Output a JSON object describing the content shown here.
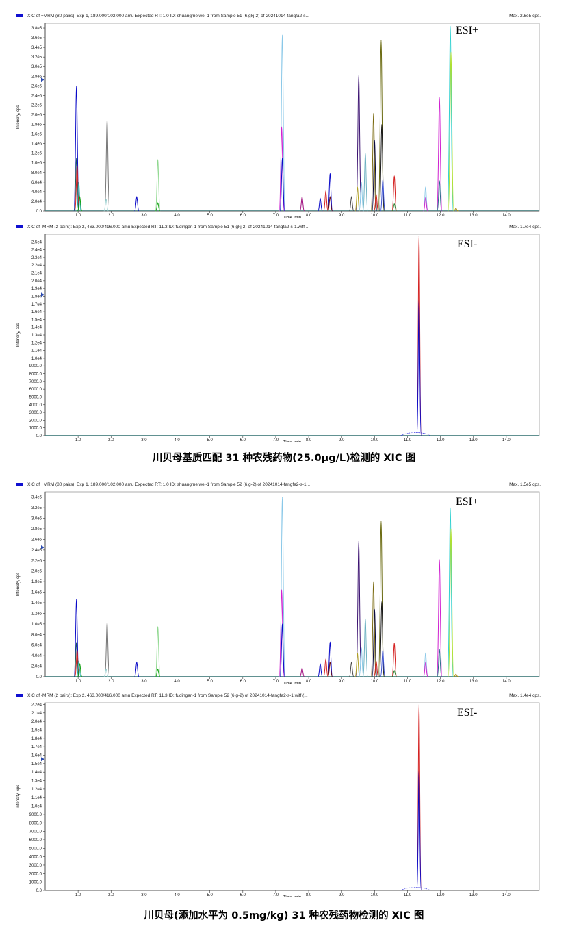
{
  "chart_data": [
    {
      "type": "line",
      "header": "XIC of +MRM (80 pairs): Exp 1, 189.000/102.000 amu Expected RT: 1.0 ID: shuangmeiwei-1 from Sample 51 (6.gkj-2) of 20241014-fangfa2-s...",
      "max_label": "Max. 2.6e5 cps.",
      "annotation": "ESI+",
      "ylabel": "Intensity, cps",
      "xlabel": "Time, min",
      "xlim": [
        0,
        15.0
      ],
      "ylim": [
        0,
        390000
      ],
      "x_ticks": [
        1.0,
        2.0,
        3.0,
        4.0,
        5.0,
        6.0,
        7.0,
        8.0,
        9.0,
        10.0,
        11.0,
        12.0,
        13.0,
        14.0
      ],
      "y_ticks": [
        0,
        20000,
        40000,
        60000,
        80000,
        100000,
        120000,
        140000,
        160000,
        180000,
        200000,
        220000,
        240000,
        260000,
        280000,
        300000,
        320000,
        340000,
        360000,
        380000
      ],
      "y_tick_labels": [
        "0.0",
        "2.0e4",
        "4.0e4",
        "6.0e4",
        "8.0e4",
        "1.0e5",
        "1.2e5",
        "1.4e5",
        "1.6e5",
        "1.8e5",
        "2.0e5",
        "2.2e5",
        "2.4e5",
        "2.6e5",
        "2.8e5",
        "3.0e5",
        "3.2e5",
        "3.4e5",
        "3.6e5",
        "3.8e5"
      ],
      "peaks": [
        {
          "x": 0.95,
          "y": 260000,
          "color": "#0a0ac8"
        },
        {
          "x": 0.95,
          "y": 110000,
          "color": "#1a5a5a"
        },
        {
          "x": 0.97,
          "y": 95000,
          "color": "#d42020"
        },
        {
          "x": 1.02,
          "y": 60000,
          "color": "#30b0b0"
        },
        {
          "x": 1.05,
          "y": 30000,
          "color": "#10a010"
        },
        {
          "x": 1.88,
          "y": 190000,
          "color": "#777777"
        },
        {
          "x": 1.85,
          "y": 25000,
          "color": "#9ad0d0"
        },
        {
          "x": 2.78,
          "y": 30000,
          "color": "#0a0ac8"
        },
        {
          "x": 3.42,
          "y": 107000,
          "color": "#90d890"
        },
        {
          "x": 3.42,
          "y": 17000,
          "color": "#10a010"
        },
        {
          "x": 7.2,
          "y": 366000,
          "color": "#8ac8e8"
        },
        {
          "x": 7.18,
          "y": 175000,
          "color": "#d020d0"
        },
        {
          "x": 7.2,
          "y": 110000,
          "color": "#0a0ac8"
        },
        {
          "x": 7.8,
          "y": 30000,
          "color": "#a01080"
        },
        {
          "x": 8.35,
          "y": 27000,
          "color": "#0a0ac8"
        },
        {
          "x": 8.52,
          "y": 42000,
          "color": "#d42020"
        },
        {
          "x": 8.65,
          "y": 78000,
          "color": "#0a0ac8"
        },
        {
          "x": 8.65,
          "y": 30000,
          "color": "#6a1010"
        },
        {
          "x": 9.3,
          "y": 30000,
          "color": "#4a4a4a"
        },
        {
          "x": 9.52,
          "y": 282000,
          "color": "#3a1070"
        },
        {
          "x": 9.48,
          "y": 50000,
          "color": "#b0a020"
        },
        {
          "x": 9.6,
          "y": 60000,
          "color": "#8ac8e8"
        },
        {
          "x": 9.72,
          "y": 120000,
          "color": "#6ab0c0"
        },
        {
          "x": 9.97,
          "y": 203000,
          "color": "#7a6a10"
        },
        {
          "x": 10.0,
          "y": 147000,
          "color": "#0a0a40"
        },
        {
          "x": 10.05,
          "y": 35000,
          "color": "#d42020"
        },
        {
          "x": 10.2,
          "y": 355000,
          "color": "#6a6a10"
        },
        {
          "x": 10.22,
          "y": 180000,
          "color": "#1a1a1a"
        },
        {
          "x": 10.25,
          "y": 65000,
          "color": "#3a50d0"
        },
        {
          "x": 10.6,
          "y": 73000,
          "color": "#d42020"
        },
        {
          "x": 10.6,
          "y": 15000,
          "color": "#308030"
        },
        {
          "x": 11.55,
          "y": 50000,
          "color": "#8ac8e8"
        },
        {
          "x": 11.55,
          "y": 28000,
          "color": "#d020d0"
        },
        {
          "x": 11.97,
          "y": 236000,
          "color": "#d020d0"
        },
        {
          "x": 11.97,
          "y": 63000,
          "color": "#2a6a8a"
        },
        {
          "x": 12.3,
          "y": 384000,
          "color": "#30d0d0"
        },
        {
          "x": 12.32,
          "y": 330000,
          "color": "#b0e030"
        },
        {
          "x": 12.47,
          "y": 6000,
          "color": "#b09010"
        }
      ]
    },
    {
      "type": "line",
      "header": "XIC of -MRM (2 pairs): Exp 2, 463.000/416.000 amu Expected RT: 11.3 ID: fudingan-1 from Sample 51 (6.gkj-2) of 20241014-fangfa2-s-1.wiff ...",
      "max_label": "Max. 1.7e4 cps.",
      "annotation": "ESI-",
      "ylabel": "Intensity, cps",
      "xlabel": "Time, min",
      "xlim": [
        0,
        15.0
      ],
      "ylim": [
        0,
        26000
      ],
      "x_ticks": [
        1.0,
        2.0,
        3.0,
        4.0,
        5.0,
        6.0,
        7.0,
        8.0,
        9.0,
        10.0,
        11.0,
        12.0,
        13.0,
        14.0
      ],
      "y_ticks": [
        0,
        1000,
        2000,
        3000,
        4000,
        5000,
        6000,
        7000,
        8000,
        9000,
        10000,
        11000,
        12000,
        13000,
        14000,
        15000,
        16000,
        17000,
        18000,
        19000,
        20000,
        21000,
        22000,
        23000,
        24000,
        25000
      ],
      "y_tick_labels": [
        "0.0",
        "1000.0",
        "2000.0",
        "3000.0",
        "4000.0",
        "5000.0",
        "6000.0",
        "7000.0",
        "8000.0",
        "9000.0",
        "1.0e4",
        "1.1e4",
        "1.2e4",
        "1.3e4",
        "1.4e4",
        "1.5e4",
        "1.6e4",
        "1.7e4",
        "1.8e4",
        "1.9e4",
        "2.0e4",
        "2.1e4",
        "2.2e4",
        "2.3e4",
        "2.4e4",
        "2.5e4"
      ],
      "peaks": [
        {
          "x": 11.35,
          "y": 25800,
          "color": "#d42020"
        },
        {
          "x": 11.35,
          "y": 17500,
          "color": "#0a0ac8"
        }
      ],
      "baseline_hump": {
        "from": 10.8,
        "to": 11.7,
        "y": 400,
        "color": "#3030e0"
      }
    },
    {
      "type": "line",
      "header": "XIC of +MRM (80 pairs): Exp 1, 189.000/102.000 amu Expected RT: 1.0 ID: shuangmeiwei-1 from Sample 52 (6.g-2) of 20241014-fangfa2-s-1...",
      "max_label": "Max. 1.5e5 cps.",
      "annotation": "ESI+",
      "ylabel": "Intensity, cps",
      "xlabel": "Time, min",
      "xlim": [
        0,
        15.0
      ],
      "ylim": [
        0,
        350000
      ],
      "x_ticks": [
        1.0,
        2.0,
        3.0,
        4.0,
        5.0,
        6.0,
        7.0,
        8.0,
        9.0,
        10.0,
        11.0,
        12.0,
        13.0,
        14.0
      ],
      "y_ticks": [
        0,
        20000,
        40000,
        60000,
        80000,
        100000,
        120000,
        140000,
        160000,
        180000,
        200000,
        220000,
        240000,
        260000,
        280000,
        300000,
        320000,
        340000
      ],
      "y_tick_labels": [
        "0.0",
        "2.0e4",
        "4.0e4",
        "6.0e4",
        "8.0e4",
        "1.0e5",
        "1.2e5",
        "1.4e5",
        "1.6e5",
        "1.8e5",
        "2.0e5",
        "2.2e5",
        "2.4e5",
        "2.6e5",
        "2.8e5",
        "3.0e5",
        "3.2e5",
        "3.4e5"
      ],
      "peaks": [
        {
          "x": 0.95,
          "y": 147000,
          "color": "#0a0ac8"
        },
        {
          "x": 0.95,
          "y": 65000,
          "color": "#1a5a5a"
        },
        {
          "x": 0.97,
          "y": 50000,
          "color": "#d42020"
        },
        {
          "x": 1.02,
          "y": 30000,
          "color": "#30b0b0"
        },
        {
          "x": 1.05,
          "y": 25000,
          "color": "#10a010"
        },
        {
          "x": 1.88,
          "y": 103000,
          "color": "#777777"
        },
        {
          "x": 1.85,
          "y": 15000,
          "color": "#9ad0d0"
        },
        {
          "x": 2.78,
          "y": 28000,
          "color": "#0a0ac8"
        },
        {
          "x": 3.42,
          "y": 95000,
          "color": "#90d890"
        },
        {
          "x": 3.42,
          "y": 15000,
          "color": "#10a010"
        },
        {
          "x": 7.2,
          "y": 340000,
          "color": "#8ac8e8"
        },
        {
          "x": 7.18,
          "y": 165000,
          "color": "#d020d0"
        },
        {
          "x": 7.2,
          "y": 100000,
          "color": "#0a0ac8"
        },
        {
          "x": 7.8,
          "y": 17000,
          "color": "#a01080"
        },
        {
          "x": 8.35,
          "y": 25000,
          "color": "#0a0ac8"
        },
        {
          "x": 8.52,
          "y": 34000,
          "color": "#d42020"
        },
        {
          "x": 8.65,
          "y": 66000,
          "color": "#0a0ac8"
        },
        {
          "x": 8.65,
          "y": 28000,
          "color": "#6a1010"
        },
        {
          "x": 9.3,
          "y": 28000,
          "color": "#4a4a4a"
        },
        {
          "x": 9.52,
          "y": 257000,
          "color": "#3a1070"
        },
        {
          "x": 9.48,
          "y": 45000,
          "color": "#b0a020"
        },
        {
          "x": 9.6,
          "y": 55000,
          "color": "#8ac8e8"
        },
        {
          "x": 9.72,
          "y": 110000,
          "color": "#6ab0c0"
        },
        {
          "x": 9.97,
          "y": 180000,
          "color": "#7a6a10"
        },
        {
          "x": 10.0,
          "y": 128000,
          "color": "#0a0a40"
        },
        {
          "x": 10.05,
          "y": 30000,
          "color": "#d42020"
        },
        {
          "x": 10.2,
          "y": 295000,
          "color": "#6a6a10"
        },
        {
          "x": 10.22,
          "y": 142000,
          "color": "#1a1a1a"
        },
        {
          "x": 10.25,
          "y": 50000,
          "color": "#3a50d0"
        },
        {
          "x": 10.6,
          "y": 64000,
          "color": "#d42020"
        },
        {
          "x": 10.6,
          "y": 12000,
          "color": "#308030"
        },
        {
          "x": 11.55,
          "y": 45000,
          "color": "#8ac8e8"
        },
        {
          "x": 11.55,
          "y": 27000,
          "color": "#d020d0"
        },
        {
          "x": 11.97,
          "y": 222000,
          "color": "#d020d0"
        },
        {
          "x": 11.97,
          "y": 52000,
          "color": "#2a6a8a"
        },
        {
          "x": 12.3,
          "y": 320000,
          "color": "#30d0d0"
        },
        {
          "x": 12.32,
          "y": 280000,
          "color": "#b0e030"
        },
        {
          "x": 12.47,
          "y": 5000,
          "color": "#b09010"
        }
      ]
    },
    {
      "type": "line",
      "header": "XIC of -MRM (2 pairs): Exp 2, 463.000/416.000 amu Expected RT: 11.3 ID: fudingan-1 from Sample 52 (6.g-2) of 20241014-fangfa2-s-1.wiff (...",
      "max_label": "Max. 1.4e4 cps.",
      "annotation": "ESI-",
      "ylabel": "Intensity, cps",
      "xlabel": "Time, min",
      "xlim": [
        0,
        15.0
      ],
      "ylim": [
        0,
        22200
      ],
      "x_ticks": [
        1.0,
        2.0,
        3.0,
        4.0,
        5.0,
        6.0,
        7.0,
        8.0,
        9.0,
        10.0,
        11.0,
        12.0,
        13.0,
        14.0
      ],
      "y_ticks": [
        0,
        1000,
        2000,
        3000,
        4000,
        5000,
        6000,
        7000,
        8000,
        9000,
        10000,
        11000,
        12000,
        13000,
        14000,
        15000,
        16000,
        17000,
        18000,
        19000,
        20000,
        21000,
        22000
      ],
      "y_tick_labels": [
        "0.0",
        "1000.0",
        "2000.0",
        "3000.0",
        "4000.0",
        "5000.0",
        "6000.0",
        "7000.0",
        "8000.0",
        "9000.0",
        "1.0e4",
        "1.1e4",
        "1.2e4",
        "1.3e4",
        "1.4e4",
        "1.5e4",
        "1.6e4",
        "1.7e4",
        "1.8e4",
        "1.9e4",
        "2.0e4",
        "2.1e4",
        "2.2e4"
      ],
      "peaks": [
        {
          "x": 11.35,
          "y": 22000,
          "color": "#d42020"
        },
        {
          "x": 11.35,
          "y": 14200,
          "color": "#0a0ac8"
        }
      ],
      "baseline_hump": {
        "from": 10.8,
        "to": 11.7,
        "y": 350,
        "color": "#3030e0"
      }
    }
  ],
  "captions": [
    "川贝母基质匹配 31 种农残药物(25.0μg/L)检测的 XIC 图",
    "川贝母(添加水平为 0.5mg/kg) 31 种农残药物检测的 XIC 图"
  ]
}
